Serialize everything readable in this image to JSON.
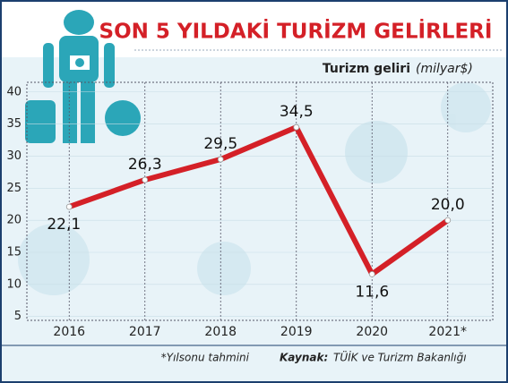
{
  "chart_data": {
    "type": "line",
    "title": "SON 5 YILDAKİ TURİZM GELİRLERİ",
    "y_label": "Turizm geliri",
    "y_unit": "(milyar$)",
    "categories": [
      "2016",
      "2017",
      "2018",
      "2019",
      "2020",
      "2021*"
    ],
    "series": [
      {
        "name": "Turizm geliri",
        "color": "#d42027",
        "values": [
          22.1,
          26.3,
          29.5,
          34.5,
          11.6,
          20.0
        ],
        "value_labels": [
          "22,1",
          "26,3",
          "29,5",
          "34,5",
          "11,6",
          "20,0"
        ]
      }
    ],
    "ylim": [
      4.4,
      41.5
    ],
    "yticks": [
      5,
      10,
      15,
      20,
      25,
      30,
      35,
      40
    ],
    "grid": true,
    "footnote": "*Yılsonu tahmini",
    "source_label": "Kaynak:",
    "source_text": "TÜİK ve Turizm Bakanlığı"
  }
}
